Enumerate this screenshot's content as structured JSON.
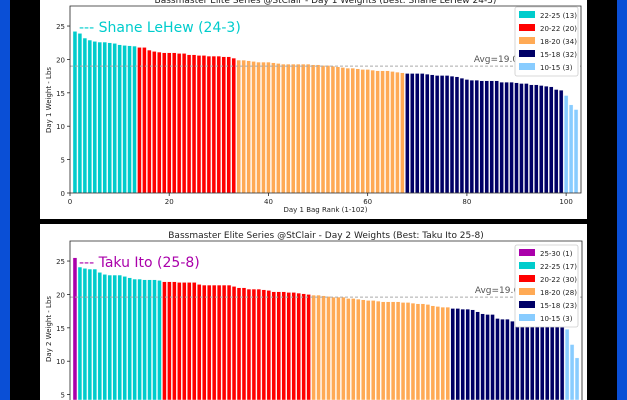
{
  "chart_data": [
    {
      "type": "bar",
      "title": "Bassmaster Elite Series @StClair - Day 1 Weights (Best: Shane LeHew 24-3)",
      "xlabel": "Day 1 Bag Rank (1-102)",
      "ylabel": "Day 1 Weight - Lbs",
      "xlim": [
        0,
        103
      ],
      "ylim": [
        0,
        28
      ],
      "xticks": [
        0,
        20,
        40,
        60,
        80,
        100
      ],
      "yticks": [
        0,
        5,
        10,
        15,
        20,
        25
      ],
      "annotation": "--- Shane LeHew (24-3)",
      "annotation_color": "#00cccc",
      "avg": 19.0,
      "avg_label": "Avg=19.0lbs",
      "legend_position": "top-right",
      "series": [
        {
          "name": "22-25 (13)",
          "color": "#00cccc",
          "values": [
            24.2,
            23.9,
            23.2,
            22.9,
            22.7,
            22.6,
            22.6,
            22.5,
            22.4,
            22.2,
            22.1,
            22.05,
            22.0
          ]
        },
        {
          "name": "20-22 (20)",
          "color": "#ff0000",
          "values": [
            21.8,
            21.8,
            21.4,
            21.2,
            21.1,
            21.0,
            21.0,
            21.0,
            20.9,
            20.9,
            20.7,
            20.7,
            20.6,
            20.6,
            20.5,
            20.5,
            20.5,
            20.4,
            20.4,
            20.2
          ]
        },
        {
          "name": "18-20 (34)",
          "color": "#ffaa55",
          "values": [
            19.9,
            19.9,
            19.8,
            19.7,
            19.6,
            19.6,
            19.6,
            19.5,
            19.4,
            19.3,
            19.3,
            19.3,
            19.3,
            19.3,
            19.3,
            19.2,
            19.2,
            19.1,
            19.1,
            19.0,
            18.9,
            18.8,
            18.7,
            18.7,
            18.6,
            18.5,
            18.5,
            18.4,
            18.3,
            18.3,
            18.3,
            18.2,
            18.1,
            18.0
          ]
        },
        {
          "name": "15-18 (32)",
          "color": "#000066",
          "values": [
            17.9,
            17.9,
            17.9,
            17.9,
            17.8,
            17.7,
            17.6,
            17.6,
            17.6,
            17.5,
            17.4,
            17.2,
            17.0,
            16.9,
            16.9,
            16.8,
            16.8,
            16.8,
            16.8,
            16.6,
            16.6,
            16.6,
            16.5,
            16.4,
            16.4,
            16.2,
            16.2,
            16.1,
            16.0,
            15.9,
            15.5,
            15.4
          ]
        },
        {
          "name": "10-15 (3)",
          "color": "#88ccff",
          "values": [
            14.6,
            13.2,
            12.5
          ]
        }
      ]
    },
    {
      "type": "bar",
      "title": "Bassmaster Elite Series @StClair - Day 2 Weights (Best: Taku Ito 25-8)",
      "xlabel": "",
      "ylabel": "Day 2 Weight - Lbs",
      "xlim": [
        0,
        103
      ],
      "ylim": [
        0,
        28
      ],
      "xticks": [],
      "yticks": [
        5,
        10,
        15,
        20,
        25
      ],
      "annotation": "--- Taku Ito (25-8)",
      "annotation_color": "#aa00aa",
      "avg": 19.6,
      "avg_label": "Avg=19.6lbs",
      "legend_position": "top-right",
      "series": [
        {
          "name": "25-30 (1)",
          "color": "#aa00aa",
          "values": [
            25.5
          ]
        },
        {
          "name": "22-25 (17)",
          "color": "#00cccc",
          "values": [
            24.1,
            23.9,
            23.8,
            23.8,
            23.3,
            23.0,
            22.9,
            22.9,
            22.9,
            22.7,
            22.5,
            22.3,
            22.3,
            22.2,
            22.2,
            22.2,
            22.1
          ]
        },
        {
          "name": "20-22 (30)",
          "color": "#ff0000",
          "values": [
            21.9,
            21.9,
            21.9,
            21.8,
            21.8,
            21.8,
            21.8,
            21.5,
            21.4,
            21.4,
            21.4,
            21.4,
            21.4,
            21.4,
            21.2,
            21.0,
            21.0,
            20.8,
            20.8,
            20.8,
            20.7,
            20.6,
            20.4,
            20.4,
            20.4,
            20.3,
            20.3,
            20.2,
            20.1,
            20.0
          ]
        },
        {
          "name": "18-20 (28)",
          "color": "#ffaa55",
          "values": [
            19.9,
            19.9,
            19.8,
            19.7,
            19.6,
            19.6,
            19.6,
            19.4,
            19.4,
            19.3,
            19.2,
            19.1,
            19.1,
            19.0,
            18.9,
            18.9,
            18.9,
            18.9,
            18.8,
            18.8,
            18.7,
            18.6,
            18.6,
            18.5,
            18.3,
            18.2,
            18.1,
            18.1
          ]
        },
        {
          "name": "15-18 (23)",
          "color": "#000066",
          "values": [
            17.9,
            17.9,
            17.8,
            17.8,
            17.7,
            17.4,
            17.1,
            17.0,
            17.0,
            16.4,
            16.3,
            16.3,
            16.0,
            16.0,
            16.0,
            16.0,
            15.9,
            15.9,
            15.9,
            15.8,
            15.5,
            15.3,
            15.1
          ]
        },
        {
          "name": "10-15 (3)",
          "color": "#88ccff",
          "values": [
            14.8,
            12.5,
            10.5
          ]
        }
      ]
    }
  ]
}
